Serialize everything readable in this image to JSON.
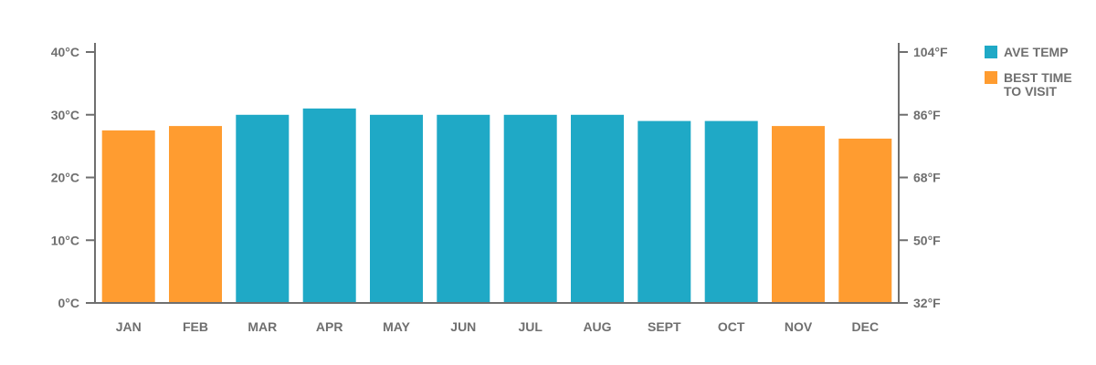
{
  "chart_data": {
    "type": "bar",
    "categories": [
      "JAN",
      "FEB",
      "MAR",
      "APR",
      "MAY",
      "JUN",
      "JUL",
      "AUG",
      "SEPT",
      "OCT",
      "NOV",
      "DEC"
    ],
    "values": [
      27.5,
      28.2,
      30.0,
      31.0,
      30.0,
      30.0,
      30.0,
      30.0,
      29.0,
      29.0,
      28.2,
      26.2
    ],
    "best_time": [
      true,
      true,
      false,
      false,
      false,
      false,
      false,
      false,
      false,
      false,
      true,
      true
    ],
    "ylim": [
      0,
      40
    ],
    "y_ticks_left": [
      "0°C",
      "10°C",
      "20°C",
      "30°C",
      "40°C"
    ],
    "y_ticks_right": [
      "32°F",
      "50°F",
      "68°F",
      "86°F",
      "104°F"
    ],
    "legend": [
      {
        "lines": [
          "AVE TEMP"
        ],
        "color": "#1fa9c6"
      },
      {
        "lines": [
          "BEST TIME",
          "TO VISIT"
        ],
        "color": "#ff9c30"
      }
    ],
    "legend_position": "right",
    "grid": false,
    "colors": {
      "ave": "#1fa9c6",
      "best": "#ff9c30",
      "axis": "#6f6f6f"
    }
  }
}
